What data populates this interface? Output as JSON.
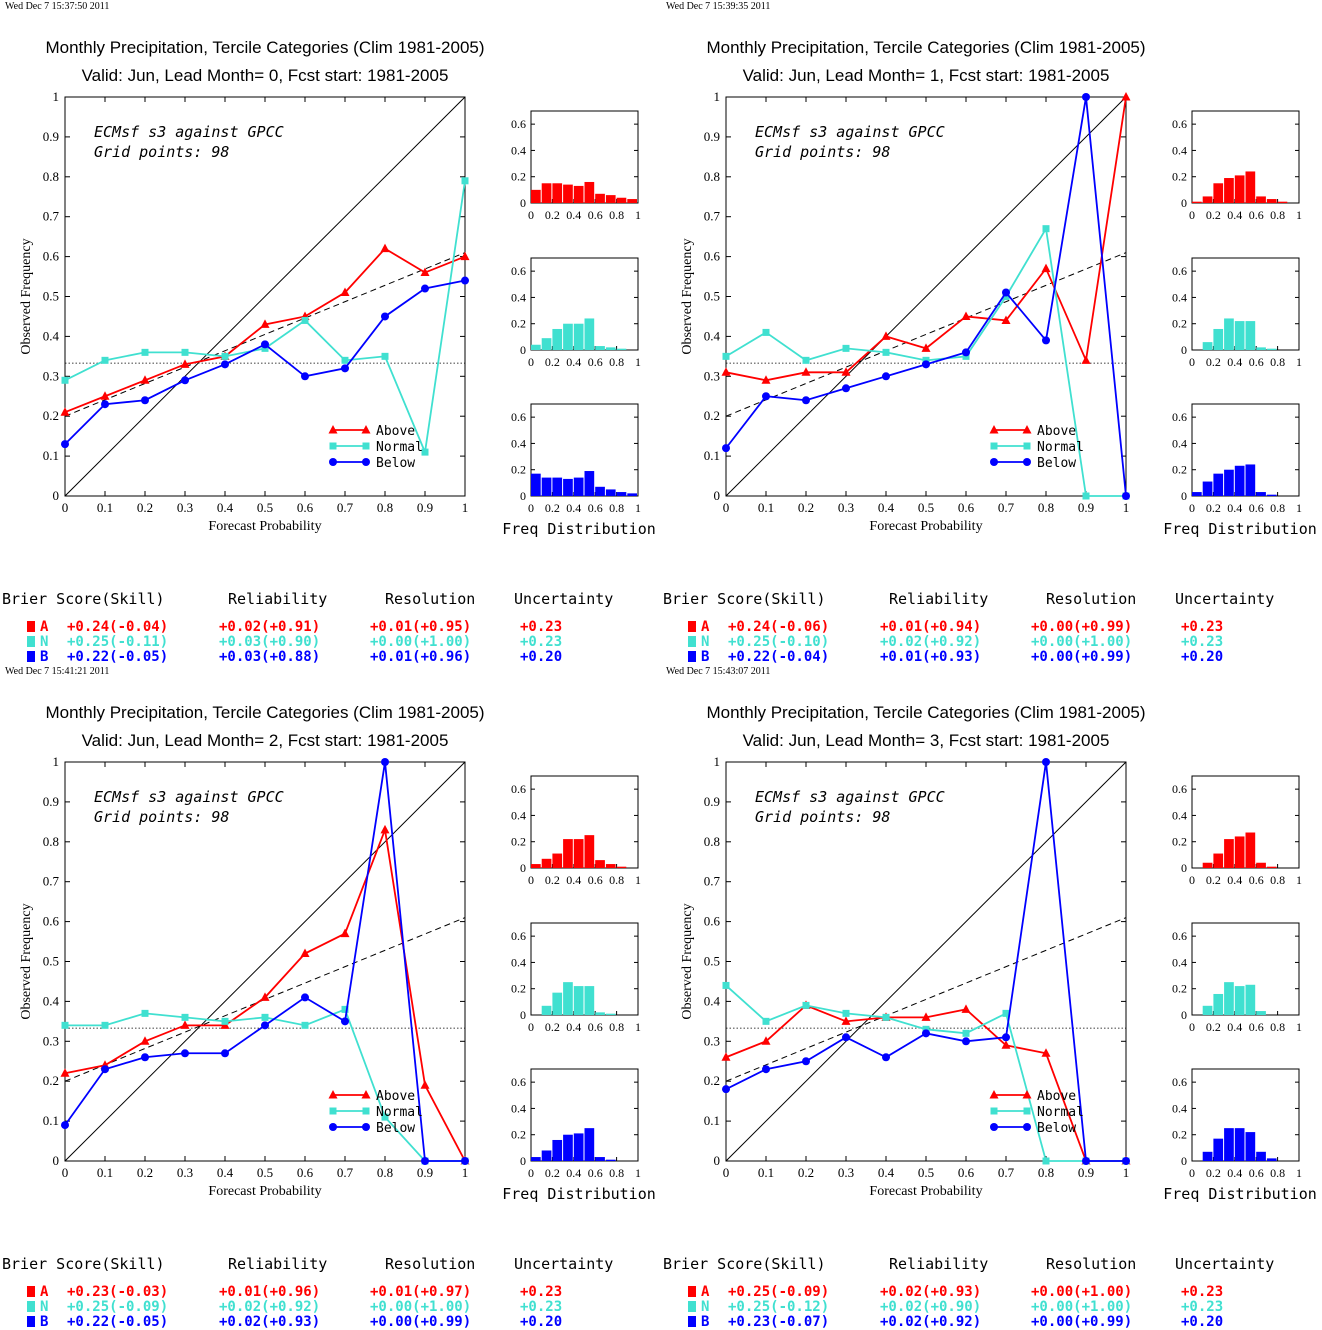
{
  "colors": {
    "above": "#ff0000",
    "normal": "#40e0d0",
    "below": "#0000ff"
  },
  "legend": [
    "Above",
    "Normal",
    "Below"
  ],
  "axes": {
    "xlabel": "Forecast Probability",
    "ylabel": "Observed Frequency",
    "ticks": [
      "0",
      "0.1",
      "0.2",
      "0.3",
      "0.4",
      "0.5",
      "0.6",
      "0.7",
      "0.8",
      "0.9",
      "1"
    ],
    "hist_xticks": [
      "0",
      "0.2",
      "0.4",
      "0.6",
      "0.8",
      "1"
    ],
    "hist_yticks": [
      "0",
      "0.2",
      "0.4",
      "0.6"
    ],
    "hist_label": "Freq Distribution"
  },
  "table_headers": [
    "Brier Score(Skill)",
    "Reliability",
    "Resolution",
    "Uncertainty"
  ],
  "chart_data": [
    {
      "type": "line",
      "timestamp": "Wed Dec  7 15:37:50 2011",
      "title": "Monthly Precipitation, Tercile Categories (Clim 1981-2005)",
      "subtitle": "Valid: Jun, Lead Month= 0, Fcst start: 1981-2005",
      "annotation": [
        "ECMsf s3 against GPCC",
        "Grid points:   98"
      ],
      "xlim": [
        0,
        1
      ],
      "ylim": [
        0,
        1
      ],
      "x": [
        0,
        0.1,
        0.2,
        0.3,
        0.4,
        0.5,
        0.6,
        0.7,
        0.8,
        0.9,
        1
      ],
      "climatology": 0.333,
      "trend": [
        0.2,
        0.61
      ],
      "series": [
        {
          "name": "Above",
          "values": [
            0.21,
            0.25,
            0.29,
            0.33,
            0.35,
            0.43,
            0.45,
            0.51,
            0.62,
            0.56,
            0.6
          ]
        },
        {
          "name": "Normal",
          "values": [
            0.29,
            0.34,
            0.36,
            0.36,
            0.35,
            0.37,
            0.44,
            0.34,
            0.35,
            0.11,
            0.79
          ]
        },
        {
          "name": "Below",
          "values": [
            0.13,
            0.23,
            0.24,
            0.29,
            0.33,
            0.38,
            0.3,
            0.32,
            0.45,
            0.52,
            0.54
          ]
        }
      ],
      "histograms": [
        [
          0.1,
          0.15,
          0.15,
          0.14,
          0.13,
          0.16,
          0.07,
          0.06,
          0.04,
          0.03
        ],
        [
          0.04,
          0.09,
          0.16,
          0.2,
          0.2,
          0.24,
          0.03,
          0.02,
          0.01,
          0.0
        ],
        [
          0.17,
          0.14,
          0.14,
          0.13,
          0.14,
          0.19,
          0.07,
          0.05,
          0.03,
          0.02
        ]
      ],
      "scores": [
        {
          "cat": "A",
          "brier": "+0.24(-0.04)",
          "reliability": "+0.02(+0.91)",
          "resolution": "+0.01(+0.95)",
          "uncertainty": "+0.23"
        },
        {
          "cat": "N",
          "brier": "+0.25(-0.11)",
          "reliability": "+0.03(+0.90)",
          "resolution": "+0.00(+1.00)",
          "uncertainty": "+0.23"
        },
        {
          "cat": "B",
          "brier": "+0.22(-0.05)",
          "reliability": "+0.03(+0.88)",
          "resolution": "+0.01(+0.96)",
          "uncertainty": "+0.20"
        }
      ]
    },
    {
      "type": "line",
      "timestamp": "Wed Dec  7 15:39:35 2011",
      "title": "Monthly Precipitation, Tercile Categories (Clim 1981-2005)",
      "subtitle": "Valid: Jun, Lead Month= 1, Fcst start: 1981-2005",
      "annotation": [
        "ECMsf s3 against GPCC",
        "Grid points:   98"
      ],
      "xlim": [
        0,
        1
      ],
      "ylim": [
        0,
        1
      ],
      "x": [
        0,
        0.1,
        0.2,
        0.3,
        0.4,
        0.5,
        0.6,
        0.7,
        0.8,
        0.9,
        1
      ],
      "climatology": 0.333,
      "trend": [
        0.2,
        0.61
      ],
      "series": [
        {
          "name": "Above",
          "values": [
            0.31,
            0.29,
            0.31,
            0.31,
            0.4,
            0.37,
            0.45,
            0.44,
            0.57,
            0.34,
            1.0
          ]
        },
        {
          "name": "Normal",
          "values": [
            0.35,
            0.41,
            0.34,
            0.37,
            0.36,
            0.34,
            0.35,
            0.5,
            0.67,
            0.0,
            0.0
          ]
        },
        {
          "name": "Below",
          "values": [
            0.12,
            0.25,
            0.24,
            0.27,
            0.3,
            0.33,
            0.36,
            0.51,
            0.39,
            1.0,
            0.0
          ]
        }
      ],
      "histograms": [
        [
          0.01,
          0.05,
          0.15,
          0.19,
          0.21,
          0.24,
          0.05,
          0.03,
          0.01,
          0.0
        ],
        [
          0.0,
          0.06,
          0.16,
          0.24,
          0.22,
          0.22,
          0.02,
          0.01,
          0.0,
          0.0
        ],
        [
          0.03,
          0.11,
          0.17,
          0.2,
          0.23,
          0.24,
          0.03,
          0.01,
          0.0,
          0.0
        ]
      ],
      "scores": [
        {
          "cat": "A",
          "brier": "+0.24(-0.06)",
          "reliability": "+0.01(+0.94)",
          "resolution": "+0.00(+0.99)",
          "uncertainty": "+0.23"
        },
        {
          "cat": "N",
          "brier": "+0.25(-0.10)",
          "reliability": "+0.02(+0.92)",
          "resolution": "+0.00(+1.00)",
          "uncertainty": "+0.23"
        },
        {
          "cat": "B",
          "brier": "+0.22(-0.04)",
          "reliability": "+0.01(+0.93)",
          "resolution": "+0.00(+0.99)",
          "uncertainty": "+0.20"
        }
      ]
    },
    {
      "type": "line",
      "timestamp": "Wed Dec  7 15:41:21 2011",
      "title": "Monthly Precipitation, Tercile Categories (Clim 1981-2005)",
      "subtitle": "Valid: Jun, Lead Month= 2, Fcst start: 1981-2005",
      "annotation": [
        "ECMsf s3 against GPCC",
        "Grid points:   98"
      ],
      "xlim": [
        0,
        1
      ],
      "ylim": [
        0,
        1
      ],
      "x": [
        0,
        0.1,
        0.2,
        0.3,
        0.4,
        0.5,
        0.6,
        0.7,
        0.8,
        0.9,
        1
      ],
      "climatology": 0.333,
      "trend": [
        0.2,
        0.61
      ],
      "series": [
        {
          "name": "Above",
          "values": [
            0.22,
            0.24,
            0.3,
            0.34,
            0.34,
            0.41,
            0.52,
            0.57,
            0.83,
            0.19,
            0.0
          ]
        },
        {
          "name": "Normal",
          "values": [
            0.34,
            0.34,
            0.37,
            0.36,
            0.35,
            0.36,
            0.34,
            0.38,
            0.11,
            0.0,
            0.0
          ]
        },
        {
          "name": "Below",
          "values": [
            0.09,
            0.23,
            0.26,
            0.27,
            0.27,
            0.34,
            0.41,
            0.35,
            1.0,
            0.0,
            0.0
          ]
        }
      ],
      "histograms": [
        [
          0.03,
          0.07,
          0.11,
          0.22,
          0.22,
          0.25,
          0.06,
          0.03,
          0.01,
          0.0
        ],
        [
          0.0,
          0.07,
          0.17,
          0.25,
          0.22,
          0.22,
          0.02,
          0.01,
          0.0,
          0.0
        ],
        [
          0.03,
          0.08,
          0.16,
          0.2,
          0.21,
          0.25,
          0.03,
          0.01,
          0.0,
          0.0
        ]
      ],
      "scores": [
        {
          "cat": "A",
          "brier": "+0.23(-0.03)",
          "reliability": "+0.01(+0.96)",
          "resolution": "+0.01(+0.97)",
          "uncertainty": "+0.23"
        },
        {
          "cat": "N",
          "brier": "+0.25(-0.09)",
          "reliability": "+0.02(+0.92)",
          "resolution": "+0.00(+1.00)",
          "uncertainty": "+0.23"
        },
        {
          "cat": "B",
          "brier": "+0.22(-0.05)",
          "reliability": "+0.02(+0.93)",
          "resolution": "+0.00(+0.99)",
          "uncertainty": "+0.20"
        }
      ]
    },
    {
      "type": "line",
      "timestamp": "Wed Dec  7 15:43:07 2011",
      "title": "Monthly Precipitation, Tercile Categories (Clim 1981-2005)",
      "subtitle": "Valid: Jun, Lead Month= 3, Fcst start: 1981-2005",
      "annotation": [
        "ECMsf s3 against GPCC",
        "Grid points:   98"
      ],
      "xlim": [
        0,
        1
      ],
      "ylim": [
        0,
        1
      ],
      "x": [
        0,
        0.1,
        0.2,
        0.3,
        0.4,
        0.5,
        0.6,
        0.7,
        0.8,
        0.9,
        1
      ],
      "climatology": 0.333,
      "trend": [
        0.2,
        0.61
      ],
      "series": [
        {
          "name": "Above",
          "values": [
            0.26,
            0.3,
            0.39,
            0.35,
            0.36,
            0.36,
            0.38,
            0.29,
            0.27,
            0.0,
            0.0
          ]
        },
        {
          "name": "Normal",
          "values": [
            0.44,
            0.35,
            0.39,
            0.37,
            0.36,
            0.33,
            0.32,
            0.37,
            0.0,
            0.0,
            0.0
          ]
        },
        {
          "name": "Below",
          "values": [
            0.18,
            0.23,
            0.25,
            0.31,
            0.26,
            0.32,
            0.3,
            0.31,
            1.0,
            0.0,
            0.0
          ]
        }
      ],
      "histograms": [
        [
          0.0,
          0.04,
          0.11,
          0.22,
          0.24,
          0.27,
          0.04,
          0.01,
          0.0,
          0.0
        ],
        [
          0.0,
          0.07,
          0.16,
          0.25,
          0.22,
          0.23,
          0.03,
          0.0,
          0.0,
          0.0
        ],
        [
          0.0,
          0.07,
          0.17,
          0.25,
          0.25,
          0.22,
          0.07,
          0.02,
          0.0,
          0.0
        ]
      ],
      "scores": [
        {
          "cat": "A",
          "brier": "+0.25(-0.09)",
          "reliability": "+0.02(+0.93)",
          "resolution": "+0.00(+1.00)",
          "uncertainty": "+0.23"
        },
        {
          "cat": "N",
          "brier": "+0.25(-0.12)",
          "reliability": "+0.02(+0.90)",
          "resolution": "+0.00(+1.00)",
          "uncertainty": "+0.23"
        },
        {
          "cat": "B",
          "brier": "+0.23(-0.07)",
          "reliability": "+0.02(+0.92)",
          "resolution": "+0.00(+0.99)",
          "uncertainty": "+0.20"
        }
      ]
    }
  ]
}
